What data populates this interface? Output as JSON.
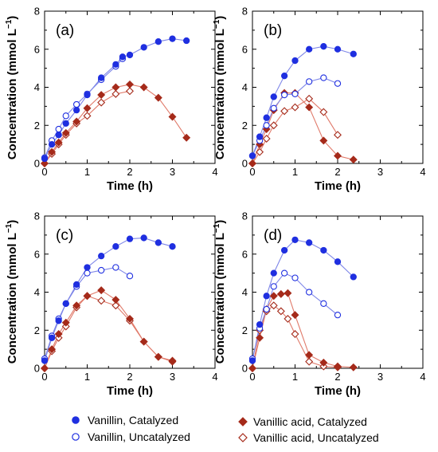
{
  "ylabel_prefix": "Concentration (mmol L",
  "ylabel_sup": "−1",
  "ylabel_suffix": ")",
  "legend": {
    "position": "bottom",
    "entries": [
      {
        "label": "Vanillin, Catalyzed",
        "color": "#1f2fe0",
        "marker": "filled-circle"
      },
      {
        "label": "Vanillin, Uncatalyzed",
        "color": "#1f2fe0",
        "marker": "open-circle"
      },
      {
        "label": "Vanillic acid, Catalyzed",
        "color": "#a52a1a",
        "marker": "filled-diamond"
      },
      {
        "label": "Vanillic acid, Uncatalyzed",
        "color": "#a52a1a",
        "marker": "open-diamond"
      }
    ]
  },
  "colors": {
    "vanillin": "#1f2fe0",
    "vanillin_line": "#7e86e8",
    "acid": "#a52a1a",
    "acid_line": "#e07a6a"
  },
  "chart_data": [
    {
      "type": "line",
      "panel": "(a)",
      "xlabel": "Time (h)",
      "xlim": [
        0,
        4
      ],
      "ylim": [
        0,
        8
      ],
      "xticks": [
        0,
        1,
        2,
        3,
        4
      ],
      "yticks": [
        0,
        2,
        4,
        6,
        8
      ],
      "grid": false,
      "series": [
        {
          "name": "Vanillin, Catalyzed",
          "x": [
            0,
            0.17,
            0.33,
            0.5,
            0.75,
            1.0,
            1.33,
            1.67,
            1.83,
            2.0,
            2.33,
            2.67,
            3.0,
            3.33
          ],
          "y": [
            0.25,
            1.0,
            1.5,
            2.1,
            2.8,
            3.6,
            4.5,
            5.2,
            5.6,
            5.7,
            6.1,
            6.4,
            6.55,
            6.45
          ]
        },
        {
          "name": "Vanillin, Uncatalyzed",
          "x": [
            0,
            0.17,
            0.33,
            0.5,
            0.75,
            1.0,
            1.33,
            1.67,
            1.83
          ],
          "y": [
            0.3,
            1.2,
            1.8,
            2.5,
            3.1,
            3.65,
            4.4,
            5.1,
            5.5
          ]
        },
        {
          "name": "Vanillic acid, Catalyzed",
          "x": [
            0,
            0.17,
            0.33,
            0.5,
            0.75,
            1.0,
            1.33,
            1.67,
            2.0,
            2.33,
            2.67,
            3.0,
            3.33
          ],
          "y": [
            0.0,
            0.6,
            1.1,
            1.6,
            2.2,
            2.9,
            3.6,
            4.0,
            4.15,
            4.0,
            3.45,
            2.45,
            1.35
          ]
        },
        {
          "name": "Vanillic acid, Uncatalyzed",
          "x": [
            0,
            0.17,
            0.33,
            0.5,
            0.75,
            1.0,
            1.33,
            1.67,
            2.0
          ],
          "y": [
            0.0,
            0.5,
            1.0,
            1.5,
            2.1,
            2.5,
            3.2,
            3.65,
            3.8
          ]
        }
      ]
    },
    {
      "type": "line",
      "panel": "(b)",
      "xlabel": "Time (h)",
      "xlim": [
        0,
        4
      ],
      "ylim": [
        0,
        8
      ],
      "xticks": [
        0,
        1,
        2,
        3,
        4
      ],
      "yticks": [
        0,
        2,
        4,
        6,
        8
      ],
      "grid": false,
      "series": [
        {
          "name": "Vanillin, Catalyzed",
          "x": [
            0,
            0.17,
            0.33,
            0.5,
            0.75,
            1.0,
            1.33,
            1.67,
            2.0,
            2.37
          ],
          "y": [
            0.4,
            1.4,
            2.4,
            3.5,
            4.6,
            5.4,
            6.0,
            6.15,
            6.0,
            5.75
          ]
        },
        {
          "name": "Vanillin, Uncatalyzed",
          "x": [
            0,
            0.17,
            0.33,
            0.5,
            0.75,
            1.0,
            1.33,
            1.67,
            2.0
          ],
          "y": [
            0.4,
            1.2,
            2.0,
            2.9,
            3.6,
            3.65,
            4.3,
            4.5,
            4.2
          ]
        },
        {
          "name": "Vanillic acid, Catalyzed",
          "x": [
            0,
            0.17,
            0.33,
            0.5,
            0.75,
            1.0,
            1.33,
            1.67,
            2.0,
            2.37
          ],
          "y": [
            0.0,
            1.0,
            1.8,
            2.8,
            3.7,
            3.7,
            2.95,
            1.2,
            0.4,
            0.2
          ]
        },
        {
          "name": "Vanillic acid, Uncatalyzed",
          "x": [
            0,
            0.17,
            0.33,
            0.5,
            0.75,
            1.0,
            1.33,
            1.67,
            2.0
          ],
          "y": [
            0.0,
            0.6,
            1.3,
            2.0,
            2.75,
            2.95,
            3.4,
            2.7,
            1.5
          ]
        }
      ]
    },
    {
      "type": "line",
      "panel": "(c)",
      "xlabel": "Time (h)",
      "xlim": [
        0,
        4
      ],
      "ylim": [
        0,
        8
      ],
      "xticks": [
        0,
        1,
        2,
        3,
        4
      ],
      "yticks": [
        0,
        2,
        4,
        6,
        8
      ],
      "grid": false,
      "series": [
        {
          "name": "Vanillin, Catalyzed",
          "x": [
            0,
            0.17,
            0.33,
            0.5,
            0.75,
            1.0,
            1.33,
            1.67,
            2.0,
            2.33,
            2.67,
            3.0
          ],
          "y": [
            0.4,
            1.6,
            2.5,
            3.4,
            4.4,
            5.3,
            5.9,
            6.4,
            6.8,
            6.85,
            6.6,
            6.4
          ]
        },
        {
          "name": "Vanillin, Uncatalyzed",
          "x": [
            0,
            0.17,
            0.33,
            0.5,
            0.75,
            1.0,
            1.33,
            1.67,
            2.0
          ],
          "y": [
            0.5,
            1.7,
            2.6,
            3.4,
            4.3,
            5.0,
            5.15,
            5.3,
            4.85
          ]
        },
        {
          "name": "Vanillic acid, Catalyzed",
          "x": [
            0,
            0.17,
            0.33,
            0.5,
            0.75,
            1.0,
            1.33,
            1.67,
            2.0,
            2.33,
            2.67,
            3.0
          ],
          "y": [
            0.0,
            1.0,
            1.8,
            2.4,
            3.3,
            3.8,
            4.1,
            3.6,
            2.6,
            1.4,
            0.6,
            0.4
          ]
        },
        {
          "name": "Vanillic acid, Uncatalyzed",
          "x": [
            0,
            0.17,
            0.33,
            0.5,
            0.75,
            1.0,
            1.33,
            1.67,
            2.0,
            2.33,
            2.67,
            3.0
          ],
          "y": [
            0.0,
            0.9,
            1.6,
            2.2,
            3.2,
            3.8,
            3.55,
            3.3,
            2.5,
            1.4,
            0.6,
            0.35
          ]
        }
      ]
    },
    {
      "type": "line",
      "panel": "(d)",
      "xlabel": "Time (h)",
      "xlim": [
        0,
        4
      ],
      "ylim": [
        0,
        8
      ],
      "xticks": [
        0,
        1,
        2,
        3,
        4
      ],
      "yticks": [
        0,
        2,
        4,
        6,
        8
      ],
      "grid": false,
      "series": [
        {
          "name": "Vanillin, Catalyzed",
          "x": [
            0,
            0.17,
            0.33,
            0.5,
            0.75,
            1.0,
            1.33,
            1.67,
            2.0,
            2.37
          ],
          "y": [
            0.4,
            2.3,
            3.8,
            5.0,
            6.2,
            6.75,
            6.6,
            6.2,
            5.6,
            4.8
          ]
        },
        {
          "name": "Vanillin, Uncatalyzed",
          "x": [
            0,
            0.17,
            0.33,
            0.5,
            0.75,
            1.0,
            1.33,
            1.67,
            2.0
          ],
          "y": [
            0.5,
            2.1,
            3.1,
            4.3,
            5.0,
            4.75,
            4.0,
            3.4,
            2.8
          ]
        },
        {
          "name": "Vanillic acid, Catalyzed",
          "x": [
            0,
            0.17,
            0.33,
            0.5,
            0.67,
            0.83,
            1.0,
            1.33,
            1.67,
            2.0,
            2.37
          ],
          "y": [
            0.0,
            1.6,
            3.1,
            3.8,
            3.9,
            3.95,
            2.8,
            0.7,
            0.3,
            0.1,
            0.05
          ]
        },
        {
          "name": "Vanillic acid, Uncatalyzed",
          "x": [
            0,
            0.17,
            0.33,
            0.5,
            0.67,
            0.83,
            1.0,
            1.33,
            1.67,
            2.0
          ],
          "y": [
            0.0,
            2.0,
            3.0,
            3.3,
            3.0,
            2.6,
            1.8,
            0.35,
            0.1,
            0.05
          ]
        }
      ]
    }
  ]
}
